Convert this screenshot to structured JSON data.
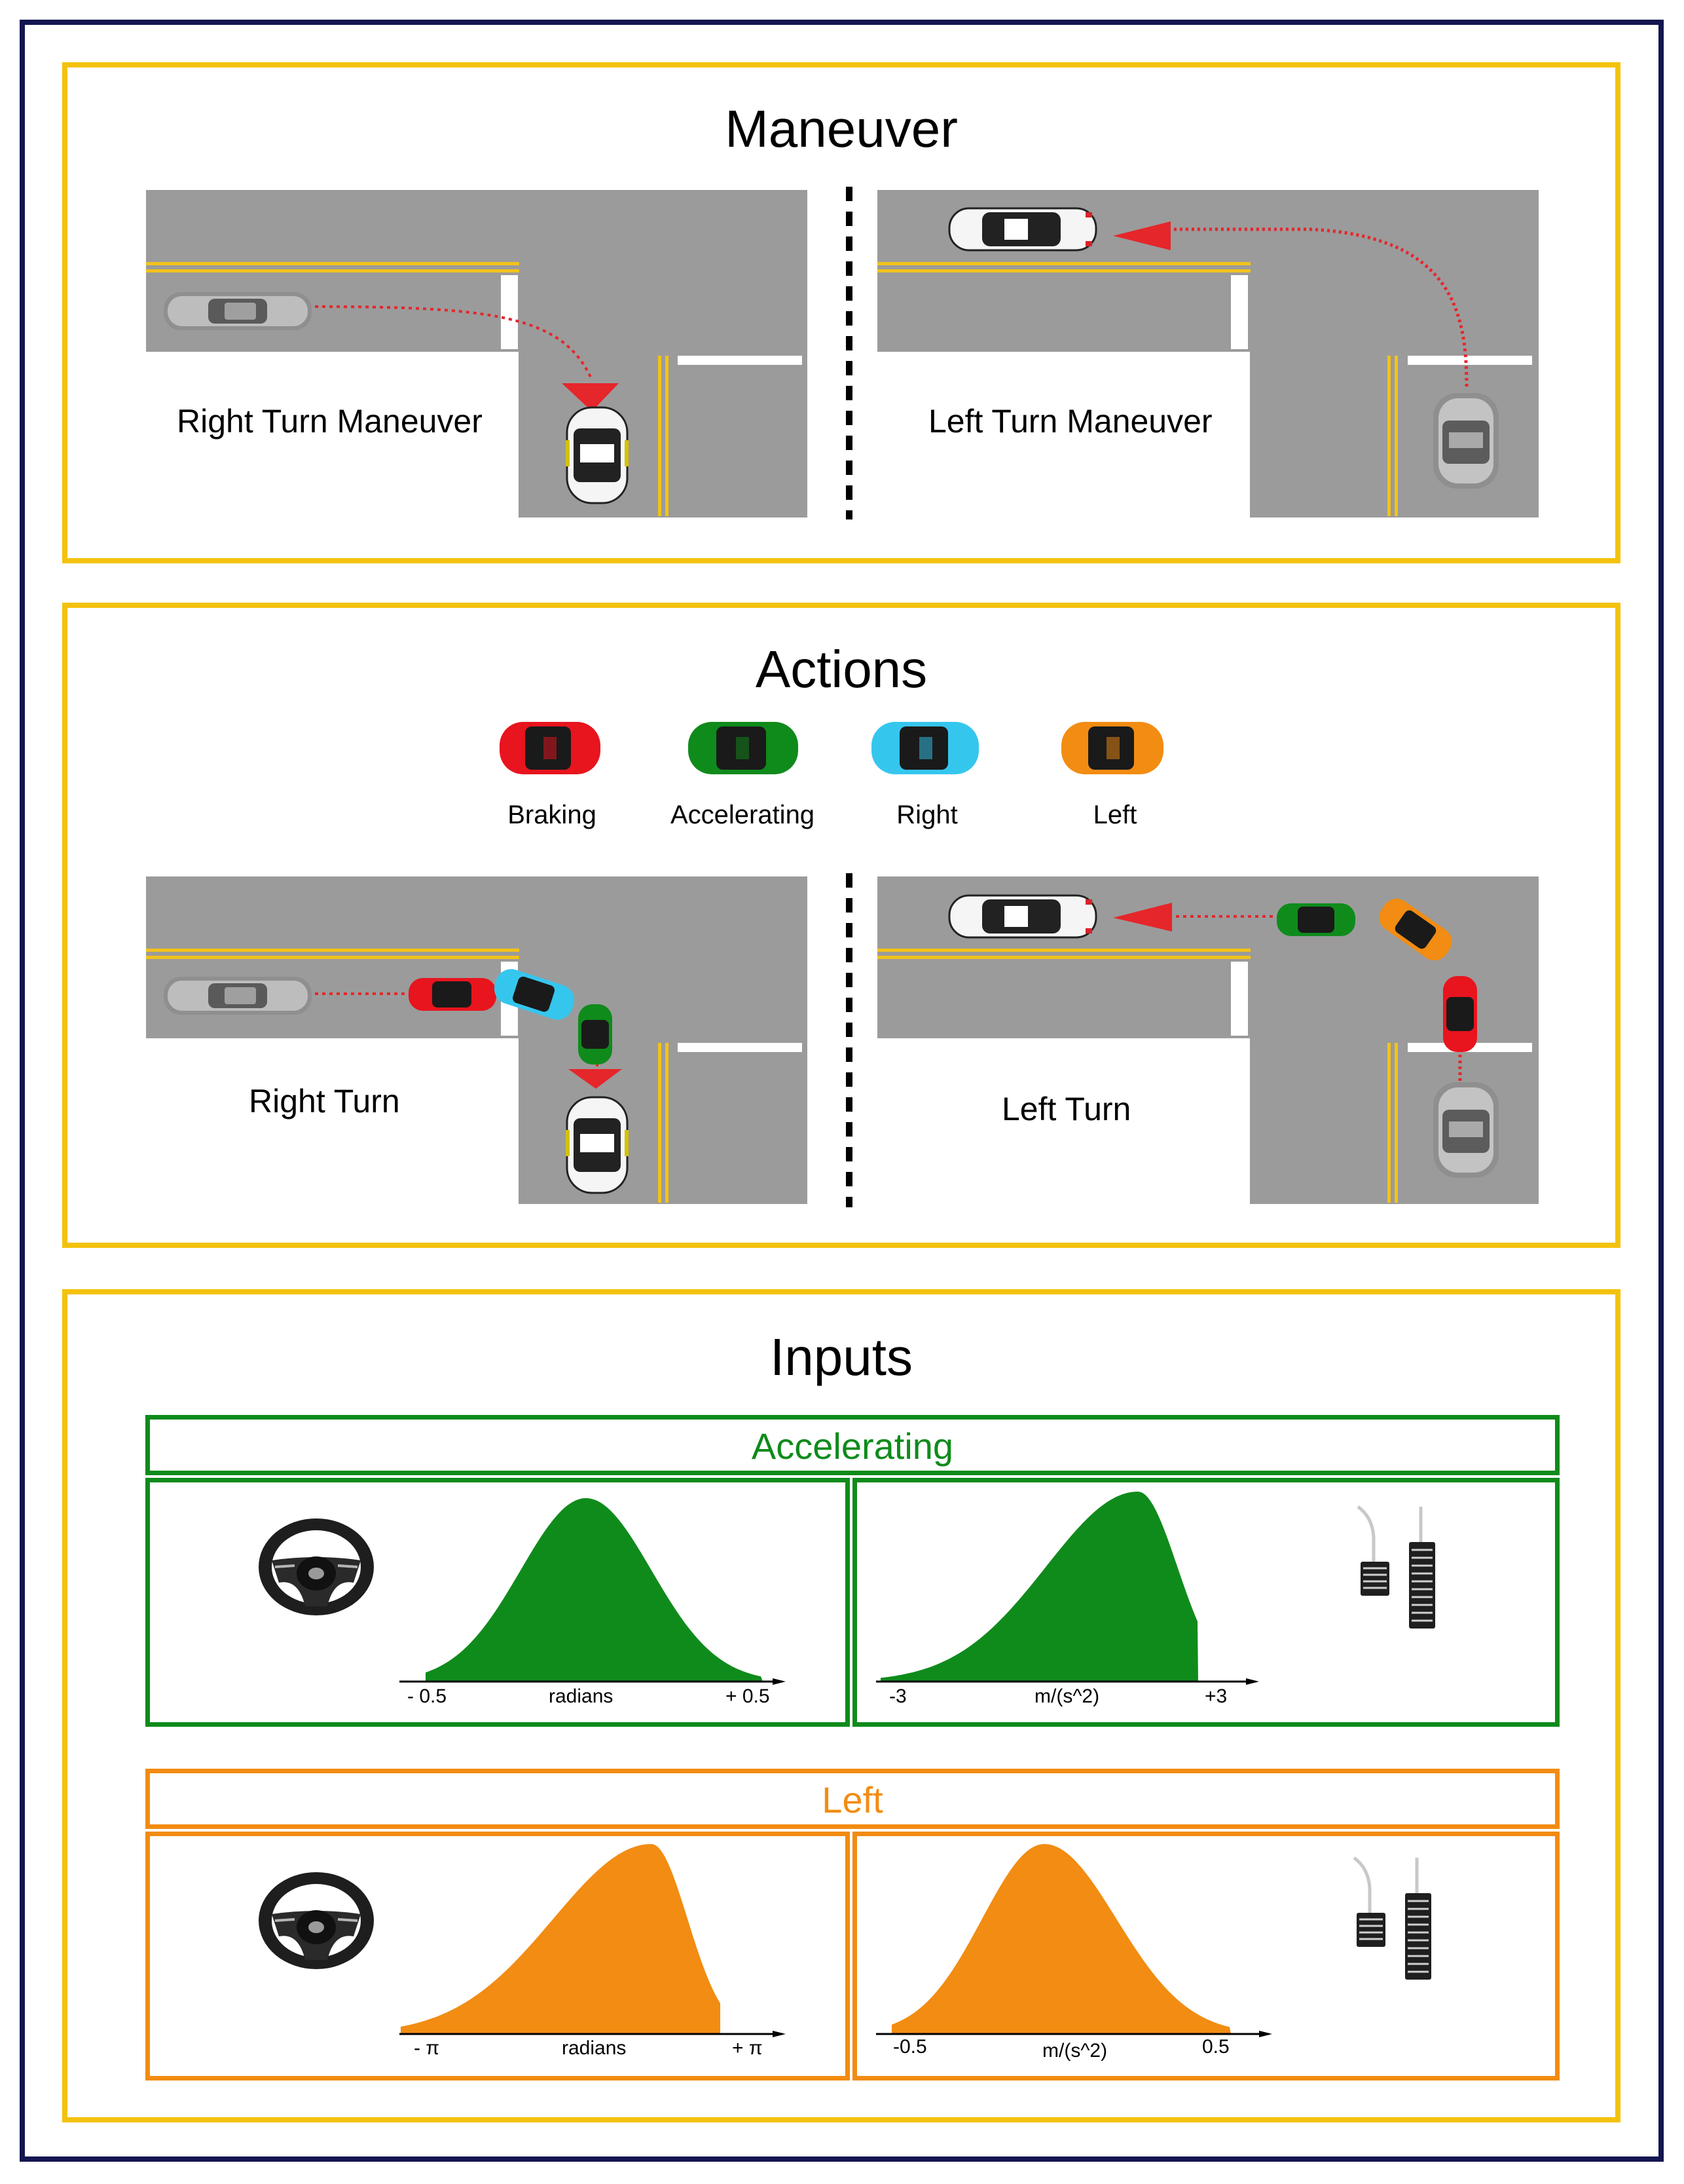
{
  "maneuver": {
    "title": "Maneuver",
    "right_label": "Right Turn Maneuver",
    "left_label": "Left Turn Maneuver"
  },
  "actions": {
    "title": "Actions",
    "legend": [
      {
        "label": "Braking",
        "color": "#E8141E"
      },
      {
        "label": "Accelerating",
        "color": "#0F8B1B"
      },
      {
        "label": "Right",
        "color": "#35C6EE"
      },
      {
        "label": "Left",
        "color": "#F28C12"
      }
    ],
    "right_label": "Right Turn",
    "left_label": "Left Turn"
  },
  "inputs": {
    "title": "Inputs",
    "accelerating": {
      "title": "Accelerating",
      "color": "#0F8B1B",
      "steer": {
        "left": "- 0.5",
        "center": "radians",
        "right": "+ 0.5"
      },
      "accel": {
        "left": "-3",
        "center": "m/(s^2)",
        "right": "+3"
      }
    },
    "left": {
      "title": "Left",
      "color": "#F28C12",
      "steer": {
        "left": "- π",
        "center": "radians",
        "right": "+ π"
      },
      "accel": {
        "left": "-0.5",
        "center": "m/(s^2)",
        "right": "0.5"
      }
    }
  },
  "colors": {
    "frame": "#141650",
    "panel_border": "#F4C20D",
    "road": "#9b9b9b",
    "road_line": "#F2C21B",
    "arrow": "#E5262B"
  }
}
